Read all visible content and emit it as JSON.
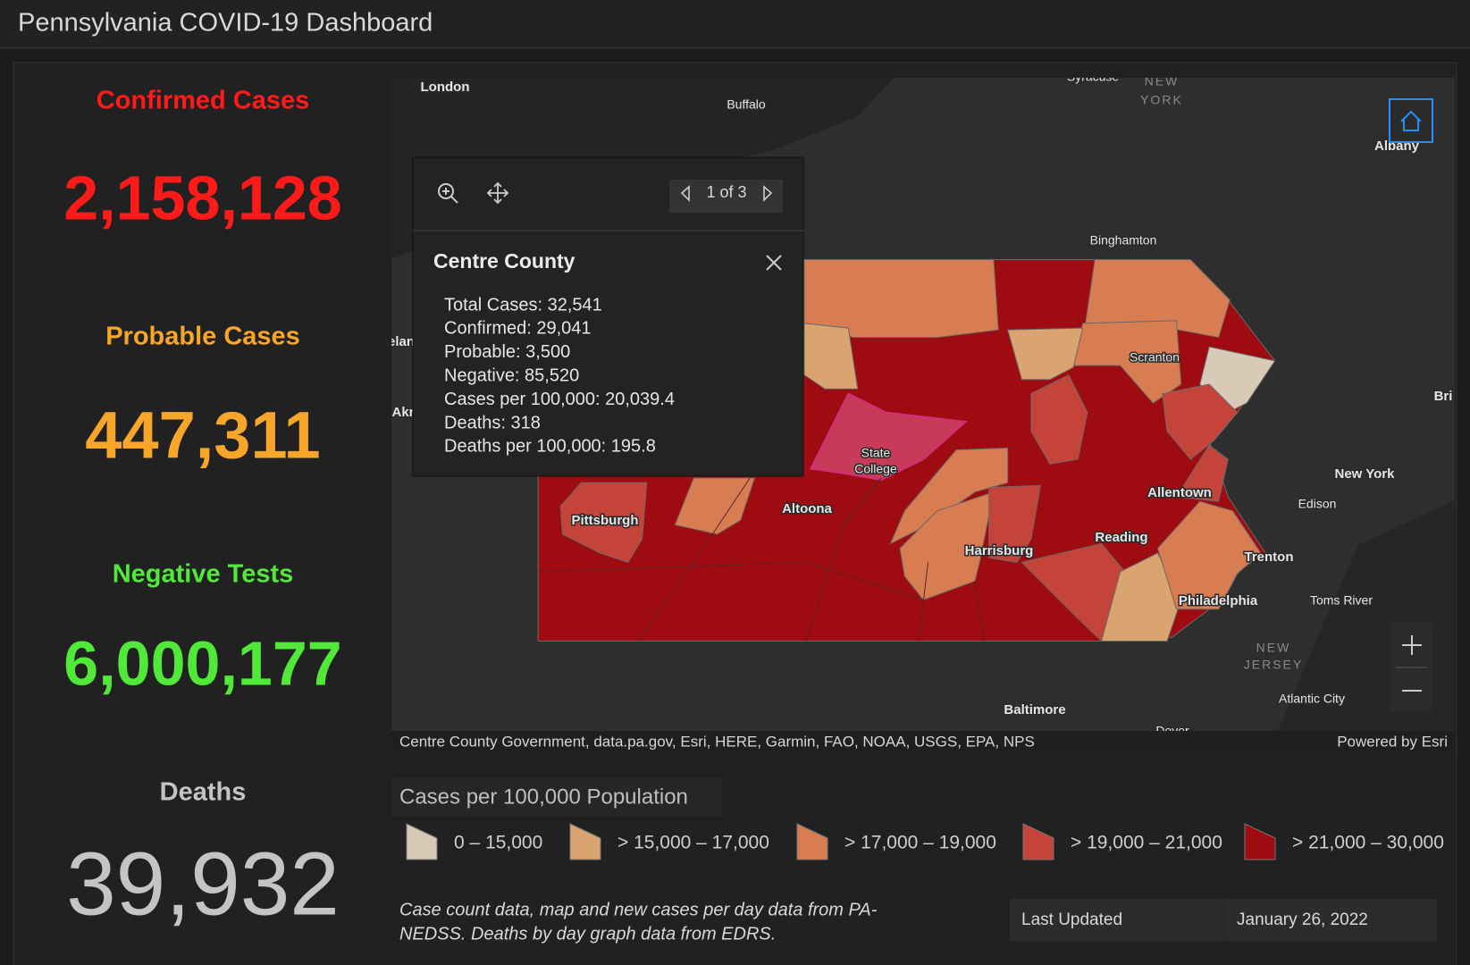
{
  "header": {
    "title": "Pennsylvania COVID-19 Dashboard"
  },
  "stats": [
    {
      "label": "Confirmed Cases",
      "value": "2,158,128",
      "color": "#ff1a1a"
    },
    {
      "label": "Probable Cases",
      "value": "447,311",
      "color": "#f7a62a"
    },
    {
      "label": "Negative Tests",
      "value": "6,000,177",
      "color": "#52e83a"
    },
    {
      "label": "Deaths",
      "value": "39,932",
      "color": "#c4c4c4"
    }
  ],
  "map": {
    "labels": [
      "London",
      "Buffalo",
      "Syracuse",
      "NEW",
      "YORK",
      "Albany",
      "Binghamton",
      "Scranton",
      "Bri",
      "elan",
      "Akr",
      "New York",
      "Edison",
      "Allentown",
      "Reading",
      "Trenton",
      "Harrisburg",
      "Altoona",
      "Pittsburgh",
      "State",
      "College",
      "Philadelphia",
      "Toms River",
      "NEW",
      "JERSEY",
      "Atlantic City",
      "Baltimore",
      "Dover"
    ],
    "attribution": "Centre County Government, data.pa.gov, Esri, HERE, Garmin, FAO, NOAA, USGS, EPA, NPS",
    "powered_by": "Powered by Esri"
  },
  "popup": {
    "pager": "1 of 3",
    "title": "Centre County",
    "fields": [
      "Total Cases: 32,541",
      "Confirmed: 29,041",
      "Probable: 3,500",
      "Negative: 85,520",
      "Cases per 100,000: 20,039.4",
      "Deaths: 318",
      "Deaths per 100,000: 195.8"
    ]
  },
  "legend": {
    "title": "Cases per 100,000 Population",
    "items": [
      {
        "label": "0 – 15,000",
        "color": "#d8cab6"
      },
      {
        "label": "> 15,000 – 17,000",
        "color": "#d9a46f"
      },
      {
        "label": "> 17,000 – 19,000",
        "color": "#d87c52"
      },
      {
        "label": "> 19,000 – 21,000",
        "color": "#c5443a"
      },
      {
        "label": "> 21,000 – 30,000",
        "color": "#9e0b11"
      }
    ]
  },
  "footer": {
    "note": [
      "Case count data, map and new cases per day data from PA-",
      "NEDSS.  Deaths by day graph data from EDRS."
    ],
    "last_updated_label": "Last Updated",
    "last_updated": "January 26, 2022"
  }
}
